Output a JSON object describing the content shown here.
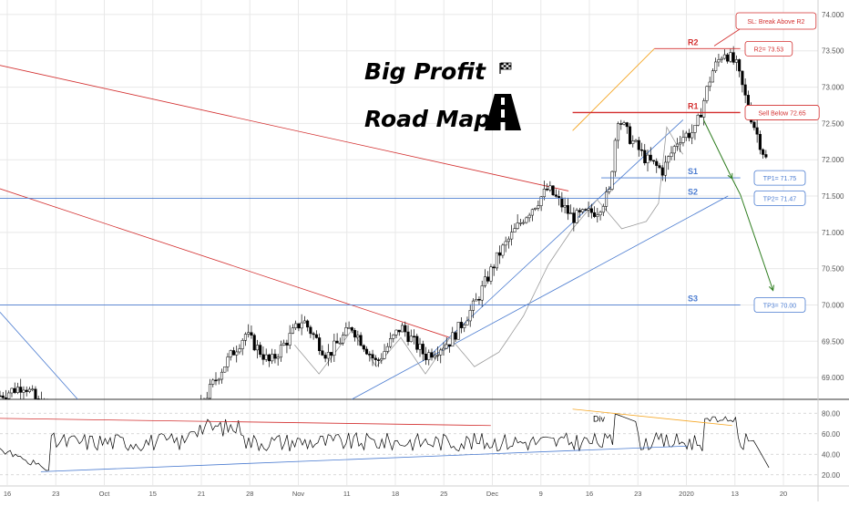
{
  "headline": {
    "line1": "Big Profit",
    "line2": "Road Map",
    "flag_icon": "checkered-flag-icon",
    "road_icon": "road-icon"
  },
  "colors": {
    "candle_up": "#ffffff",
    "candle_down": "#000000",
    "resistance": "#d32f2f",
    "support": "#4a7bd0",
    "orange": "#f5a623",
    "green_arrow": "#2e7d1f",
    "grid": "#e8e8e8",
    "axis_text": "#555555",
    "rsi_line": "#000000",
    "ma_line": "#9a9a9a"
  },
  "chart_data": {
    "type": "candlestick",
    "symbol_units": "price",
    "y_ticks": [
      "74.000",
      "73.500",
      "73.000",
      "72.500",
      "72.000",
      "71.500",
      "71.000",
      "70.500",
      "70.000",
      "69.500",
      "69.000"
    ],
    "y_tick_values": [
      74.0,
      73.5,
      73.0,
      72.5,
      72.0,
      71.5,
      71.0,
      70.5,
      70.0,
      69.5,
      69.0
    ],
    "ylim": [
      68.7,
      74.2
    ],
    "x_ticks": [
      "16",
      "23",
      "Oct",
      "15",
      "21",
      "28",
      "Nov",
      "11",
      "18",
      "25",
      "Dec",
      "9",
      "16",
      "23",
      "2020",
      "13",
      "20"
    ],
    "levels": [
      {
        "name": "R2",
        "value": 73.53,
        "color": "resistance",
        "callout": "R2= 73.53"
      },
      {
        "name": "R1",
        "value": 72.65,
        "color": "resistance",
        "callout": "Sell Below 72.65"
      },
      {
        "name": "S1",
        "value": 71.75,
        "color": "support",
        "callout": "TP1= 71.75"
      },
      {
        "name": "S2",
        "value": 71.47,
        "color": "support",
        "callout": "TP2= 71.47"
      },
      {
        "name": "S3",
        "value": 70.0,
        "color": "support",
        "callout": "TP3= 70.00"
      }
    ],
    "stop_loss_note": "SL: Break Above R2",
    "price_path": [
      {
        "t": 0.0,
        "p": 68.75
      },
      {
        "t": 0.03,
        "p": 68.9
      },
      {
        "t": 0.05,
        "p": 68.6
      },
      {
        "t": 0.14,
        "p": 68.4
      },
      {
        "t": 0.24,
        "p": 68.5
      },
      {
        "t": 0.27,
        "p": 69.1
      },
      {
        "t": 0.3,
        "p": 69.6
      },
      {
        "t": 0.33,
        "p": 69.2
      },
      {
        "t": 0.37,
        "p": 69.8
      },
      {
        "t": 0.4,
        "p": 69.3
      },
      {
        "t": 0.43,
        "p": 69.7
      },
      {
        "t": 0.46,
        "p": 69.2
      },
      {
        "t": 0.49,
        "p": 69.7
      },
      {
        "t": 0.52,
        "p": 69.3
      },
      {
        "t": 0.55,
        "p": 69.5
      },
      {
        "t": 0.58,
        "p": 70.0
      },
      {
        "t": 0.61,
        "p": 70.7
      },
      {
        "t": 0.64,
        "p": 71.2
      },
      {
        "t": 0.67,
        "p": 71.6
      },
      {
        "t": 0.7,
        "p": 71.2
      },
      {
        "t": 0.73,
        "p": 71.3
      },
      {
        "t": 0.745,
        "p": 71.55
      },
      {
        "t": 0.755,
        "p": 72.6
      },
      {
        "t": 0.77,
        "p": 72.3
      },
      {
        "t": 0.79,
        "p": 72.0
      },
      {
        "t": 0.81,
        "p": 71.85
      },
      {
        "t": 0.83,
        "p": 72.3
      },
      {
        "t": 0.85,
        "p": 72.4
      },
      {
        "t": 0.87,
        "p": 73.2
      },
      {
        "t": 0.885,
        "p": 73.5
      },
      {
        "t": 0.9,
        "p": 73.3
      },
      {
        "t": 0.915,
        "p": 72.7
      },
      {
        "t": 0.93,
        "p": 72.2
      },
      {
        "t": 0.94,
        "p": 71.9
      }
    ],
    "rsi": {
      "y_ticks": [
        "80.00",
        "60.00",
        "40.00",
        "20.00"
      ],
      "y_tick_values": [
        80,
        60,
        40,
        20
      ],
      "ylim": [
        10,
        90
      ],
      "divergence_label": "Div"
    }
  }
}
